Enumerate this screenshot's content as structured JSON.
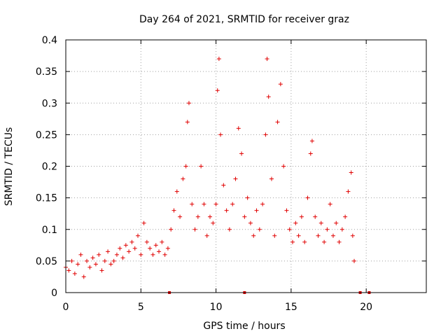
{
  "chart_data": {
    "type": "scatter",
    "title": "Day 264 of 2021, SRMTID for receiver graz",
    "xlabel": "GPS time / hours",
    "ylabel": "SRMTID / TECUs",
    "xlim": [
      0,
      24
    ],
    "ylim": [
      0,
      0.4
    ],
    "xticks": [
      0,
      5,
      10,
      15,
      20
    ],
    "yticks": [
      0,
      0.05,
      0.1,
      0.15,
      0.2,
      0.25,
      0.3,
      0.35,
      0.4
    ],
    "xtick_labels": [
      "0",
      "5",
      "10",
      "15",
      "20"
    ],
    "ytick_labels": [
      "0",
      "0.05",
      "0.1",
      "0.15",
      "0.2",
      "0.25",
      "0.3",
      "0.35",
      "0.4"
    ],
    "grid": true,
    "marker": "+",
    "color": "#e00000",
    "series": [
      {
        "name": "SRMTID",
        "points": [
          [
            0.0,
            0.04
          ],
          [
            0.2,
            0.035
          ],
          [
            0.4,
            0.05
          ],
          [
            0.6,
            0.03
          ],
          [
            0.8,
            0.045
          ],
          [
            1.0,
            0.06
          ],
          [
            1.2,
            0.025
          ],
          [
            1.4,
            0.05
          ],
          [
            1.6,
            0.04
          ],
          [
            1.8,
            0.055
          ],
          [
            2.0,
            0.045
          ],
          [
            2.2,
            0.06
          ],
          [
            2.4,
            0.035
          ],
          [
            2.6,
            0.05
          ],
          [
            2.8,
            0.065
          ],
          [
            3.0,
            0.045
          ],
          [
            3.2,
            0.05
          ],
          [
            3.4,
            0.06
          ],
          [
            3.6,
            0.07
          ],
          [
            3.8,
            0.055
          ],
          [
            4.0,
            0.075
          ],
          [
            4.2,
            0.065
          ],
          [
            4.4,
            0.08
          ],
          [
            4.6,
            0.07
          ],
          [
            4.8,
            0.09
          ],
          [
            5.0,
            0.06
          ],
          [
            5.2,
            0.11
          ],
          [
            5.4,
            0.08
          ],
          [
            5.6,
            0.07
          ],
          [
            5.8,
            0.06
          ],
          [
            6.0,
            0.075
          ],
          [
            6.2,
            0.065
          ],
          [
            6.4,
            0.08
          ],
          [
            6.6,
            0.06
          ],
          [
            6.8,
            0.07
          ],
          [
            7.0,
            0.1
          ],
          [
            7.2,
            0.13
          ],
          [
            7.4,
            0.16
          ],
          [
            7.6,
            0.12
          ],
          [
            7.8,
            0.18
          ],
          [
            8.0,
            0.2
          ],
          [
            8.1,
            0.27
          ],
          [
            8.2,
            0.3
          ],
          [
            8.4,
            0.14
          ],
          [
            8.6,
            0.1
          ],
          [
            8.8,
            0.12
          ],
          [
            9.0,
            0.2
          ],
          [
            9.2,
            0.14
          ],
          [
            9.4,
            0.09
          ],
          [
            9.6,
            0.12
          ],
          [
            9.8,
            0.11
          ],
          [
            10.0,
            0.14
          ],
          [
            10.1,
            0.32
          ],
          [
            10.2,
            0.37
          ],
          [
            10.3,
            0.25
          ],
          [
            10.5,
            0.17
          ],
          [
            10.7,
            0.13
          ],
          [
            10.9,
            0.1
          ],
          [
            11.1,
            0.14
          ],
          [
            11.3,
            0.18
          ],
          [
            11.5,
            0.26
          ],
          [
            11.7,
            0.22
          ],
          [
            11.9,
            0.12
          ],
          [
            12.1,
            0.15
          ],
          [
            12.3,
            0.11
          ],
          [
            12.5,
            0.09
          ],
          [
            12.7,
            0.13
          ],
          [
            12.9,
            0.1
          ],
          [
            13.1,
            0.14
          ],
          [
            13.3,
            0.25
          ],
          [
            13.4,
            0.37
          ],
          [
            13.5,
            0.31
          ],
          [
            13.7,
            0.18
          ],
          [
            13.9,
            0.09
          ],
          [
            14.1,
            0.27
          ],
          [
            14.3,
            0.33
          ],
          [
            14.5,
            0.2
          ],
          [
            14.7,
            0.13
          ],
          [
            14.9,
            0.1
          ],
          [
            15.1,
            0.08
          ],
          [
            15.3,
            0.11
          ],
          [
            15.5,
            0.09
          ],
          [
            15.7,
            0.12
          ],
          [
            15.9,
            0.08
          ],
          [
            16.1,
            0.15
          ],
          [
            16.3,
            0.22
          ],
          [
            16.4,
            0.24
          ],
          [
            16.6,
            0.12
          ],
          [
            16.8,
            0.09
          ],
          [
            17.0,
            0.11
          ],
          [
            17.2,
            0.08
          ],
          [
            17.4,
            0.1
          ],
          [
            17.6,
            0.14
          ],
          [
            17.8,
            0.09
          ],
          [
            18.0,
            0.11
          ],
          [
            18.2,
            0.08
          ],
          [
            18.4,
            0.1
          ],
          [
            18.6,
            0.12
          ],
          [
            18.8,
            0.16
          ],
          [
            19.0,
            0.19
          ],
          [
            19.1,
            0.09
          ],
          [
            19.2,
            0.05
          ]
        ]
      }
    ],
    "zero_marks_x": [
      6.9,
      11.9,
      19.6,
      20.2
    ]
  }
}
